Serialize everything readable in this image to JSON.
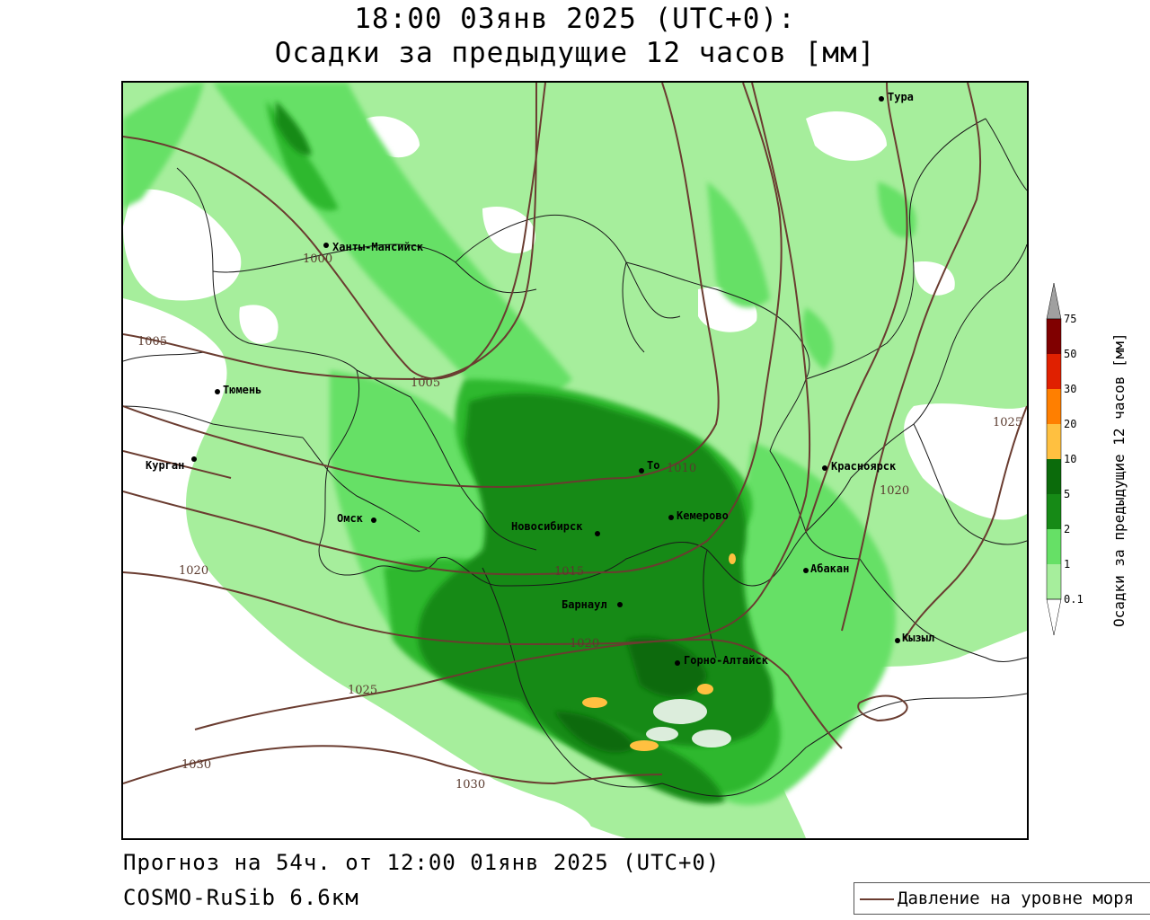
{
  "header": {
    "title_line1": "18:00 03янв 2025 (UTC+0):",
    "title_line2": "Осадки за предыдущие 12 часов [мм]"
  },
  "footer": {
    "forecast": "Прогноз на 54ч. от 12:00 01янв 2025 (UTC+0)",
    "model": "COSMO-RuSib 6.6км"
  },
  "legend": {
    "pressure_label": "Давление на уровне моря"
  },
  "colorbar": {
    "title": "Осадки за предыдущие 12 часов [мм]",
    "levels": [
      "0.1",
      "1",
      "2",
      "5",
      "10",
      "20",
      "30",
      "50",
      "75"
    ],
    "colors": [
      "#ffffff",
      "#a6ee9c",
      "#66e066",
      "#2eb82e",
      "#168a16",
      "#0b6b0b",
      "#ffc040",
      "#ff7f00",
      "#e02000",
      "#b00000",
      "#800000",
      "#a0a0a0"
    ]
  },
  "map": {
    "colors": {
      "light": "#a6ee9c",
      "mid": "#66e066",
      "green": "#2eb82e",
      "dark": "#168a16",
      "orange": "#ffc040",
      "isobar": "#6a3c30",
      "border": "#1a1a1a"
    },
    "cities": [
      {
        "name": "Тура"
      },
      {
        "name": "Ханты-Мансийск"
      },
      {
        "name": "Тюмень"
      },
      {
        "name": "Курган"
      },
      {
        "name": "Омск"
      },
      {
        "name": "Новосибирск"
      },
      {
        "name": "То"
      },
      {
        "name": "Кемерово"
      },
      {
        "name": "Красноярск"
      },
      {
        "name": "Абакан"
      },
      {
        "name": "Барнаул"
      },
      {
        "name": "Горно-Алтайск"
      },
      {
        "name": "Кызыл"
      }
    ],
    "isobar_labels": [
      "1000",
      "1005",
      "1005",
      "1010",
      "1015",
      "1020",
      "1020",
      "1020",
      "1025",
      "1025",
      "1030",
      "1030"
    ]
  }
}
